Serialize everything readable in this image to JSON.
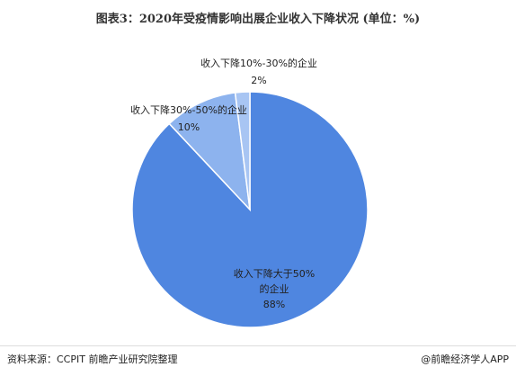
{
  "chart_data": {
    "type": "pie",
    "title": "图表3：2020年受疫情影响出展企业收入下降状况 (单位：%)",
    "categories": [
      "收入下降大于50%的企业",
      "收入下降30%-50%的企业",
      "收入下降10%-30%的企业"
    ],
    "values": [
      88,
      10,
      2
    ],
    "value_labels": [
      "88%",
      "10%",
      "2%"
    ],
    "colors": [
      "#4f86e0",
      "#8db3ee",
      "#a8c5f3"
    ],
    "source": "资料来源：CCPIT 前瞻产业研究院整理",
    "brand": "@前瞻经济学人APP"
  }
}
